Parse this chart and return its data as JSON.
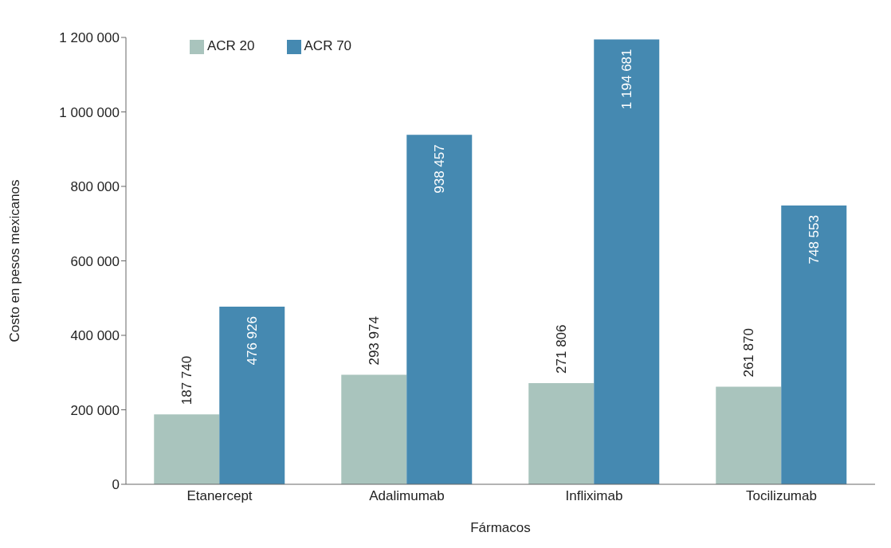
{
  "chart_data": {
    "type": "bar",
    "xlabel": "Fármacos",
    "ylabel": "Costo en pesos mexicanos",
    "categories": [
      "Etanercept",
      "Adalimumab",
      "Infliximab",
      "Tocilizumab"
    ],
    "series": [
      {
        "name": "ACR 20",
        "color": "#a9c4bd",
        "values": [
          187740,
          293974,
          271806,
          261870
        ],
        "value_labels": [
          "187 740",
          "293 974",
          "271 806",
          "261 870"
        ]
      },
      {
        "name": "ACR 70",
        "color": "#4589b1",
        "values": [
          476926,
          938457,
          1194681,
          748553
        ],
        "value_labels": [
          "476 926",
          "938 457",
          "1 194 681",
          "748 553"
        ]
      }
    ],
    "ylim": [
      0,
      1200000
    ],
    "yticks": [
      0,
      {
        "value": 200000,
        "label": "200 000"
      },
      {
        "value": 400000,
        "label": "400 000"
      },
      {
        "value": 600000,
        "label": "600 000"
      },
      {
        "value": 800000,
        "label": "800 000"
      },
      {
        "value": 1000000,
        "label": "1 000 000"
      },
      {
        "value": 1200000,
        "label": "1 200 000"
      }
    ],
    "grid": false,
    "legend": "top left"
  }
}
